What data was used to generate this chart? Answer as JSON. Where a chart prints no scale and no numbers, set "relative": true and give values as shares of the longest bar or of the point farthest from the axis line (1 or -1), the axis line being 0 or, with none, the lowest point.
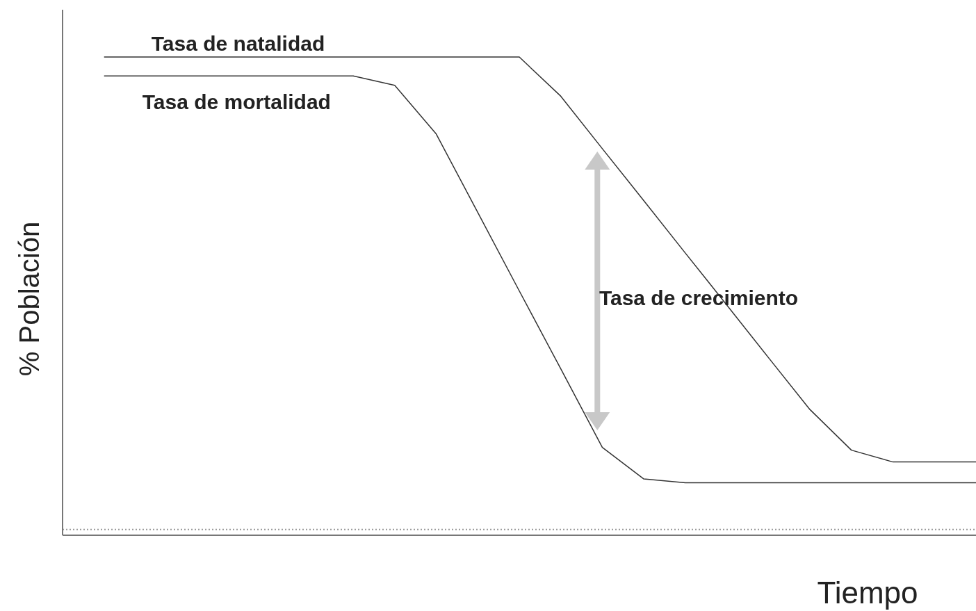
{
  "chart_data": {
    "type": "line",
    "relative": true,
    "xlabel": "Tiempo",
    "ylabel": "% Población",
    "grid": false,
    "marker": "none",
    "line_style": "solid",
    "categories": [
      null,
      null,
      null,
      null,
      null,
      null,
      null,
      null,
      null,
      null,
      null,
      null,
      null,
      null,
      null,
      null,
      null,
      null,
      null,
      null,
      null,
      null
    ],
    "series": [
      {
        "name": "Tasa de natalidad",
        "color": "#333333",
        "values": [
          1.0,
          1.0,
          1.0,
          1.0,
          1.0,
          1.0,
          1.0,
          1.0,
          1.0,
          1.0,
          1.0,
          0.917,
          0.806,
          0.696,
          0.585,
          0.475,
          0.364,
          0.254,
          0.168,
          0.143,
          0.143,
          0.143
        ]
      },
      {
        "name": "Tasa de mortalidad",
        "color": "#333333",
        "values": [
          0.96,
          0.96,
          0.96,
          0.96,
          0.96,
          0.96,
          0.96,
          0.94,
          0.837,
          0.671,
          0.505,
          0.34,
          0.174,
          0.107,
          0.099,
          0.099,
          0.099,
          0.099,
          0.099,
          0.099,
          0.099,
          0.099
        ]
      }
    ],
    "ref_lines": [
      {
        "axis": "y",
        "value": 0,
        "color": "#999999",
        "line_style": "dotted"
      }
    ],
    "annotations": [
      "Tasa de crecimiento"
    ]
  }
}
